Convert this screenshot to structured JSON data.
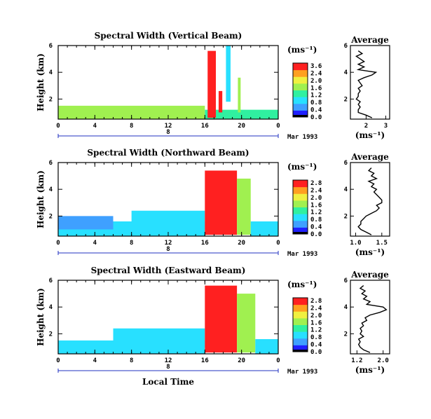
{
  "chart_data": [
    {
      "type": "heatmap",
      "title": "Spectral Width (Vertical Beam)",
      "ylabel": "Height (km)",
      "xlim": [
        0,
        24
      ],
      "ylim": [
        0.5,
        6
      ],
      "x_ticks": [
        "0",
        "4",
        "8",
        "12",
        "16",
        "20",
        "0"
      ],
      "y_ticks": [
        "2",
        "4",
        "6"
      ],
      "date_day": "8",
      "date_label": "Mar 1993",
      "colorbar": {
        "unit": "(ms⁻¹)",
        "ticks": [
          "3.6",
          "2.4",
          "2.0",
          "1.6",
          "1.2",
          "0.8",
          "0.4",
          "0.0"
        ],
        "colors": [
          "#2020ff",
          "#3fa0ff",
          "#28e0ff",
          "#30f0a0",
          "#a0f050",
          "#f0f040",
          "#ffa020",
          "#ff2020"
        ]
      },
      "average_profile": {
        "title": "Average",
        "xlabel": "(ms⁻¹)",
        "x_ticks": [
          "2",
          "3"
        ],
        "y_ticks": [
          "2",
          "4",
          "6"
        ],
        "xlim": [
          1.2,
          3.2
        ],
        "ylim": [
          0.5,
          6
        ],
        "height_km": [
          0.6,
          0.8,
          1.0,
          1.2,
          1.4,
          1.6,
          1.8,
          2.0,
          2.2,
          2.4,
          2.6,
          2.8,
          3.0,
          3.2,
          3.4,
          3.6,
          3.8,
          4.0,
          4.2,
          4.4,
          4.6,
          4.8,
          5.0,
          5.2,
          5.4,
          5.6
        ],
        "width": [
          2.3,
          2.0,
          1.6,
          1.6,
          1.7,
          1.6,
          1.7,
          1.5,
          1.6,
          1.6,
          1.7,
          1.6,
          1.8,
          1.7,
          1.6,
          1.9,
          2.3,
          2.5,
          1.6,
          1.9,
          1.6,
          1.9,
          1.7,
          1.5,
          1.8,
          1.6
        ]
      },
      "regions": [
        {
          "t0": 0,
          "t1": 16,
          "z0": 0.5,
          "z1": 1.5,
          "v": 2.2
        },
        {
          "t0": 16,
          "t1": 24,
          "z0": 0.5,
          "z1": 1.2,
          "v": 1.4
        },
        {
          "t0": 16.3,
          "t1": 17.2,
          "z0": 0.6,
          "z1": 5.6,
          "v": 3.6
        },
        {
          "t0": 18.3,
          "t1": 18.8,
          "z0": 1.8,
          "z1": 6.0,
          "v": 1.0
        },
        {
          "t0": 19.6,
          "t1": 19.9,
          "z0": 1.0,
          "z1": 3.6,
          "v": 2.0
        },
        {
          "t0": 17.5,
          "t1": 17.9,
          "z0": 1.0,
          "z1": 2.6,
          "v": 3.2
        }
      ]
    },
    {
      "type": "heatmap",
      "title": "Spectral Width (Northward Beam)",
      "ylabel": "Height (km)",
      "xlim": [
        0,
        24
      ],
      "ylim": [
        0.5,
        6
      ],
      "x_ticks": [
        "0",
        "4",
        "8",
        "12",
        "16",
        "20",
        "0"
      ],
      "y_ticks": [
        "2",
        "4",
        "6"
      ],
      "date_day": "8",
      "date_label": "Mar 1993",
      "colorbar": {
        "unit": "(ms⁻¹)",
        "ticks": [
          "2.8",
          "2.4",
          "2.0",
          "1.6",
          "1.2",
          "0.8",
          "0.4",
          "0.0"
        ],
        "colors": [
          "#2020ff",
          "#3fa0ff",
          "#28e0ff",
          "#30f0a0",
          "#a0f050",
          "#f0f040",
          "#ffa020",
          "#ff2020"
        ]
      },
      "average_profile": {
        "title": "Average",
        "xlabel": "(ms⁻¹)",
        "x_ticks": [
          "1.0",
          "1.5"
        ],
        "y_ticks": [
          "2",
          "4",
          "6"
        ],
        "xlim": [
          0.9,
          1.65
        ],
        "ylim": [
          0.5,
          6
        ],
        "height_km": [
          0.6,
          0.8,
          1.0,
          1.2,
          1.4,
          1.6,
          1.8,
          2.0,
          2.2,
          2.4,
          2.6,
          2.8,
          3.0,
          3.2,
          3.4,
          3.6,
          3.8,
          4.0,
          4.2,
          4.4,
          4.6,
          4.8,
          5.0,
          5.2,
          5.4,
          5.6
        ],
        "width": [
          1.3,
          1.2,
          1.1,
          1.05,
          1.1,
          1.1,
          1.15,
          1.2,
          1.3,
          1.4,
          1.45,
          1.4,
          1.5,
          1.5,
          1.45,
          1.4,
          1.35,
          1.4,
          1.3,
          1.35,
          1.25,
          1.4,
          1.3,
          1.35,
          1.25,
          1.3
        ]
      },
      "regions": [
        {
          "t0": 0,
          "t1": 16,
          "z0": 0.5,
          "z1": 1.6,
          "v": 1.0
        },
        {
          "t0": 0,
          "t1": 6,
          "z0": 1.0,
          "z1": 2.0,
          "v": 0.4
        },
        {
          "t0": 8,
          "t1": 16,
          "z0": 1.0,
          "z1": 2.4,
          "v": 0.8
        },
        {
          "t0": 16,
          "t1": 19.5,
          "z0": 0.6,
          "z1": 5.4,
          "v": 2.8
        },
        {
          "t0": 19.5,
          "t1": 21,
          "z0": 0.6,
          "z1": 4.8,
          "v": 1.6
        },
        {
          "t0": 21,
          "t1": 24,
          "z0": 0.5,
          "z1": 1.6,
          "v": 0.8
        }
      ]
    },
    {
      "type": "heatmap",
      "title": "Spectral Width (Eastward Beam)",
      "ylabel": "Height (km)",
      "xlabel": "Local Time",
      "xlim": [
        0,
        24
      ],
      "ylim": [
        0.5,
        6
      ],
      "x_ticks": [
        "0",
        "4",
        "8",
        "12",
        "16",
        "20",
        "0"
      ],
      "y_ticks": [
        "2",
        "4",
        "6"
      ],
      "date_day": "8",
      "date_label": "Mar 1993",
      "colorbar": {
        "unit": "(ms⁻¹)",
        "ticks": [
          "2.8",
          "2.4",
          "2.0",
          "1.6",
          "1.2",
          "0.8",
          "0.4",
          "0.0"
        ],
        "colors": [
          "#2020ff",
          "#3fa0ff",
          "#28e0ff",
          "#30f0a0",
          "#a0f050",
          "#f0f040",
          "#ffa020",
          "#ff2020"
        ]
      },
      "average_profile": {
        "title": "Average",
        "xlabel": "(ms⁻¹)",
        "x_ticks": [
          "1.2",
          "2.0"
        ],
        "y_ticks": [
          "2",
          "4",
          "6"
        ],
        "xlim": [
          1.0,
          2.2
        ],
        "ylim": [
          0.5,
          6
        ],
        "height_km": [
          0.6,
          0.8,
          1.0,
          1.2,
          1.4,
          1.6,
          1.8,
          2.0,
          2.2,
          2.4,
          2.6,
          2.8,
          3.0,
          3.2,
          3.4,
          3.6,
          3.8,
          4.0,
          4.2,
          4.4,
          4.6,
          4.8,
          5.0,
          5.2,
          5.4,
          5.6
        ],
        "width": [
          1.6,
          1.4,
          1.3,
          1.25,
          1.3,
          1.25,
          1.4,
          1.3,
          1.35,
          1.3,
          1.4,
          1.35,
          1.5,
          1.45,
          1.6,
          1.9,
          2.1,
          2.0,
          1.5,
          1.6,
          1.4,
          1.5,
          1.35,
          1.45,
          1.3,
          1.4
        ]
      },
      "regions": [
        {
          "t0": 0,
          "t1": 16,
          "z0": 0.5,
          "z1": 1.5,
          "v": 1.0
        },
        {
          "t0": 6,
          "t1": 16,
          "z0": 1.0,
          "z1": 2.4,
          "v": 0.8
        },
        {
          "t0": 16,
          "t1": 19.5,
          "z0": 0.6,
          "z1": 5.6,
          "v": 2.8
        },
        {
          "t0": 19.5,
          "t1": 21.5,
          "z0": 0.6,
          "z1": 5.0,
          "v": 1.6
        },
        {
          "t0": 21.5,
          "t1": 24,
          "z0": 0.5,
          "z1": 1.6,
          "v": 0.8
        }
      ]
    }
  ]
}
